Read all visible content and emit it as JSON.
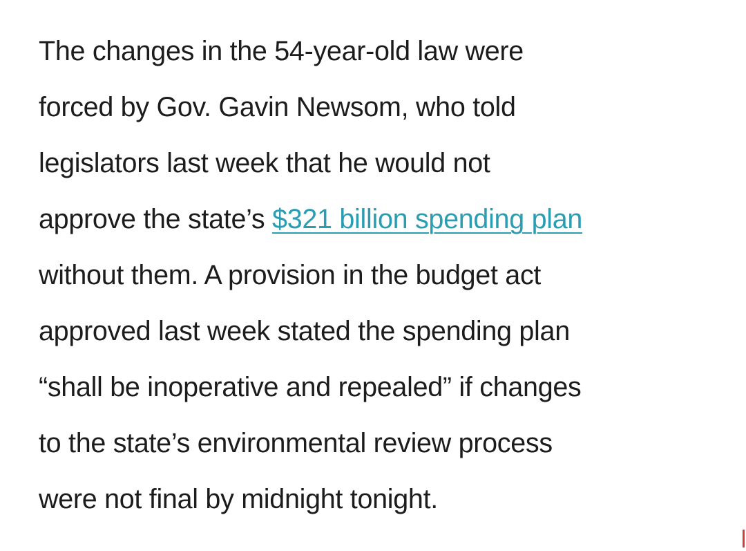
{
  "article": {
    "paragraph": {
      "line1": "The changes in the 54-year-old law were",
      "line2": "forced by Gov. Gavin Newsom, who told",
      "line3": "legislators last week that he would not",
      "line4_before_link": "approve the state’s ",
      "link_text": "$321 billion spending plan",
      "line5": "without them. A provision in the budget act",
      "line6": "approved last week stated the spending plan",
      "line7": "“shall be inoperative and repealed” if changes",
      "line8": "to the state’s environmental review process",
      "line9": "were not final by midnight tonight."
    }
  },
  "colors": {
    "text": "#1c1c1c",
    "link": "#2a9db3",
    "edge_mark": "#d93a3a"
  }
}
